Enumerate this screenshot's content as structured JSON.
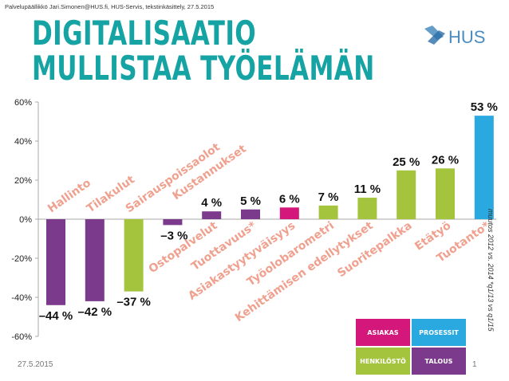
{
  "header": {
    "source": "Palvelupäällikkö Jari.Simonen@HUS.fi,  HUS-Servis, tekstinkäsittely, 27.5.2015",
    "title_line1": "DIGITALISAATIO",
    "title_line2": "MULLISTAA TYÖELÄMÄN"
  },
  "logo": {
    "text": "HUS",
    "color": "#4a8cc0"
  },
  "chart_data": {
    "type": "bar",
    "categories": [
      "Hallinto",
      "Tilakulut",
      "Sairauspoissaolot",
      "Kustannukset",
      "Ostopalvelut",
      "Tuottavuus*",
      "Asiakastyytyväisyys",
      "Työolobarometri",
      "Kehittämisen edellytykset",
      "Suoritepalkka",
      "Etätyö",
      "Tuotanto*"
    ],
    "values": [
      -44,
      -42,
      -37,
      -3,
      4,
      5,
      6,
      7,
      11,
      25,
      26,
      53
    ],
    "value_labels": [
      "–44 %",
      "–42 %",
      "–37 %",
      "–3 %",
      "4 %",
      "5 %",
      "6 %",
      "7 %",
      "11 %",
      "25 %",
      "26 %",
      "53 %"
    ],
    "groups": [
      "TALOUS",
      "TALOUS",
      "HENKILÖSTÖ",
      "TALOUS",
      "TALOUS",
      "TALOUS",
      "ASIAKAS",
      "HENKILÖSTÖ",
      "HENKILÖSTÖ",
      "HENKILÖSTÖ",
      "HENKILÖSTÖ",
      "PROSESSIT"
    ],
    "ylim": [
      -60,
      60
    ],
    "yticks": [
      -60,
      -40,
      -20,
      0,
      20,
      40,
      60
    ],
    "ytick_labels": [
      "-60%",
      "-40%",
      "-20%",
      "0%",
      "20%",
      "40%",
      "60%"
    ],
    "grid": false,
    "legend_placement": "bottom-right"
  },
  "legend": [
    {
      "label": "ASIAKAS",
      "color": "#d4177a"
    },
    {
      "label": "PROSESSIT",
      "color": "#2aa8e0"
    },
    {
      "label": "HENKILÖSTÖ",
      "color": "#a3c43c"
    },
    {
      "label": "TALOUS",
      "color": "#7b3a8c"
    }
  ],
  "footer": {
    "date": "27.5.2015",
    "page": "1"
  },
  "side_note": "muutos 2012 vs. 2014  *q1/13 vs q1/15",
  "colors": {
    "title": "#16a3a3",
    "label": "#f0a08e",
    "axis": "#aaaaaa"
  }
}
